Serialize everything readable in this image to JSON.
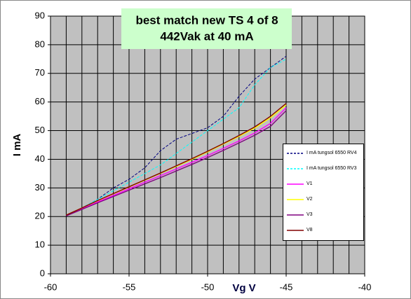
{
  "chart_data": {
    "type": "line",
    "title": "best  match new TS 4 of 8",
    "subtitle": "442Vak at 40 mA",
    "x_label": "Vg V",
    "y_label": "I mA",
    "x": [
      -59,
      -58,
      -57,
      -56,
      -55,
      -54,
      -53,
      -52,
      -51,
      -50,
      -49,
      -48,
      -47,
      -46,
      -45
    ],
    "series": [
      {
        "name": "I mA tungsol 6550 RV4",
        "color": "#000080",
        "dash": true,
        "values": [
          20.5,
          23,
          26,
          30,
          33,
          37,
          43,
          47,
          49,
          51,
          55,
          62,
          68,
          72,
          76
        ]
      },
      {
        "name": "I mA tungsol 6550 RV3",
        "color": "#00ffff",
        "dash": true,
        "values": [
          20.5,
          23,
          26,
          29,
          32,
          35,
          38,
          42,
          46,
          50,
          54,
          58,
          66,
          72,
          75
        ]
      },
      {
        "name": "V1",
        "color": "#ff00ff",
        "dash": false,
        "values": [
          20.3,
          22.7,
          25.1,
          27.4,
          29.7,
          32,
          34.3,
          36.6,
          38.9,
          41.3,
          43.8,
          46.4,
          49.2,
          52.5,
          58
        ]
      },
      {
        "name": "V2",
        "color": "#ffff00",
        "dash": false,
        "values": [
          20.5,
          23,
          25.5,
          27.9,
          30.3,
          32.7,
          35.1,
          37.5,
          40,
          42.6,
          45.3,
          48,
          50.9,
          54.5,
          59
        ]
      },
      {
        "name": "V3",
        "color": "#800080",
        "dash": false,
        "values": [
          20.2,
          22.5,
          24.8,
          27,
          29.2,
          31.4,
          33.6,
          35.9,
          38.2,
          40.6,
          43.1,
          45.7,
          48.4,
          51.5,
          57
        ]
      },
      {
        "name": "V8",
        "color": "#800000",
        "dash": false,
        "values": [
          20.5,
          23,
          25.6,
          28,
          30.4,
          32.8,
          35.2,
          37.7,
          40.2,
          42.8,
          45.5,
          48.3,
          51.3,
          55,
          59.5
        ]
      }
    ],
    "xlim": [
      -60,
      -40
    ],
    "xticks": [
      -60,
      -55,
      -50,
      -45,
      -40
    ],
    "xgrid_step": 1,
    "ylim": [
      0,
      90
    ],
    "yticks": [
      0,
      10,
      20,
      30,
      40,
      50,
      60,
      70,
      80,
      90
    ],
    "grid": true,
    "legend": "right"
  }
}
